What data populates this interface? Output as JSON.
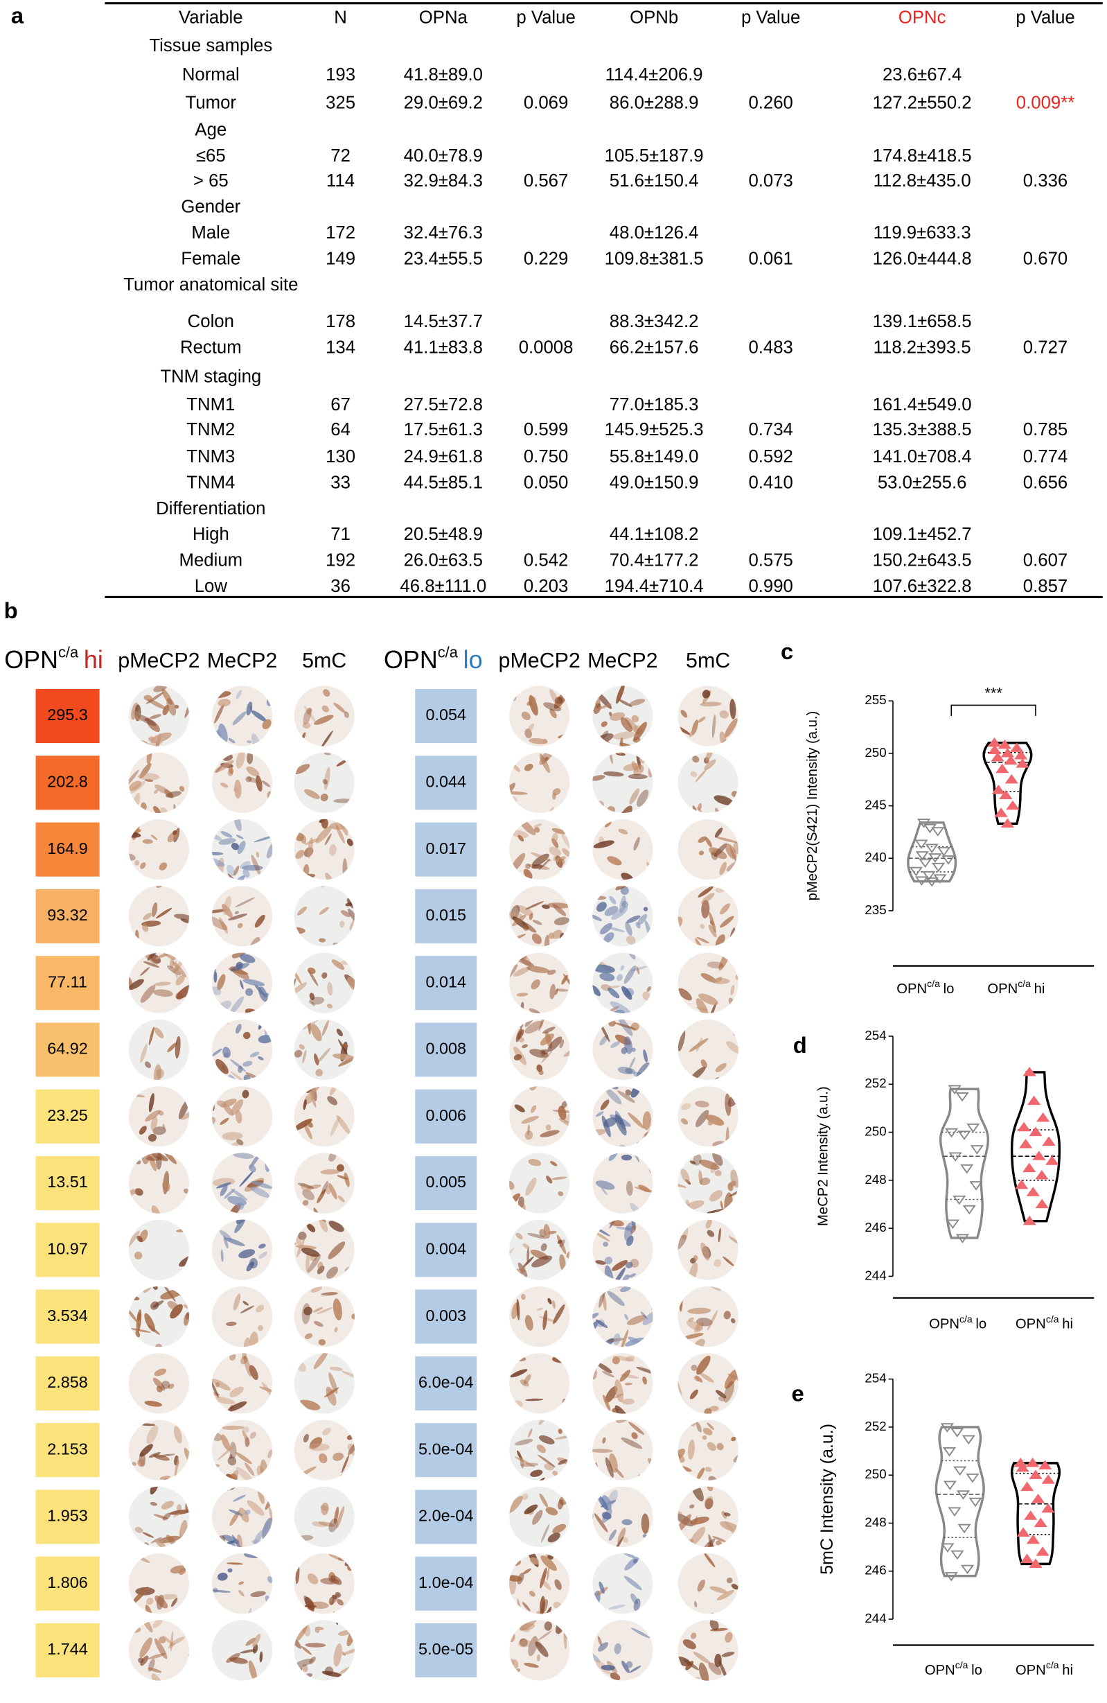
{
  "panel_labels": [
    "a",
    "b",
    "c",
    "d",
    "e"
  ],
  "table": {
    "columns": [
      "Variable",
      "N",
      "OPNa",
      "p Value",
      "OPNb",
      "p Value",
      "OPNc",
      "p Value"
    ],
    "rows": [
      {
        "group": "Tissue samples"
      },
      {
        "cells": [
          "Normal",
          "193",
          "41.8±89.0",
          null,
          "114.4±206.9",
          null,
          "23.6±67.4",
          null
        ]
      },
      {
        "cells": [
          "Tumor",
          "325",
          "29.0±69.2",
          "0.069",
          "86.0±288.9",
          "0.260",
          "127.2±550.2",
          "0.009**"
        ]
      },
      {
        "group": "Age"
      },
      {
        "cells": [
          "≤65",
          "72",
          "40.0±78.9",
          null,
          "105.5±187.9",
          null,
          "174.8±418.5",
          null
        ]
      },
      {
        "cells": [
          "> 65",
          "114",
          "32.9±84.3",
          "0.567",
          "51.6±150.4",
          "0.073",
          "112.8±435.0",
          "0.336"
        ]
      },
      {
        "group": "Gender"
      },
      {
        "cells": [
          "Male",
          "172",
          "32.4±76.3",
          null,
          "48.0±126.4",
          null,
          "119.9±633.3",
          null
        ]
      },
      {
        "cells": [
          "Female",
          "149",
          "23.4±55.5",
          "0.229",
          "109.8±381.5",
          "0.061",
          "126.0±444.8",
          "0.670"
        ]
      },
      {
        "group": "Tumor anatomical site"
      },
      {
        "cells": [
          "Colon",
          "178",
          "14.5±37.7",
          null,
          "88.3±342.2",
          null,
          "139.1±658.5",
          null
        ]
      },
      {
        "cells": [
          "Rectum",
          "134",
          "41.1±83.8",
          "0.0008",
          "66.2±157.6",
          "0.483",
          "118.2±393.5",
          "0.727"
        ]
      },
      {
        "group": "TNM staging"
      },
      {
        "cells": [
          "TNM1",
          "67",
          "27.5±72.8",
          null,
          "77.0±185.3",
          null,
          "161.4±549.0",
          null
        ]
      },
      {
        "cells": [
          "TNM2",
          "64",
          "17.5±61.3",
          "0.599",
          "145.9±525.3",
          "0.734",
          "135.3±388.5",
          "0.785"
        ]
      },
      {
        "cells": [
          "TNM3",
          "130",
          "24.9±61.8",
          "0.750",
          "55.8±149.0",
          "0.592",
          "141.0±708.4",
          "0.774"
        ]
      },
      {
        "cells": [
          "TNM4",
          "33",
          "44.5±85.1",
          "0.050",
          "49.0±150.9",
          "0.410",
          "53.0±255.6",
          "0.656"
        ]
      },
      {
        "group": "Differentiation"
      },
      {
        "cells": [
          "High",
          "71",
          "20.5±48.9",
          null,
          "44.1±108.2",
          null,
          "109.1±452.7",
          null
        ]
      },
      {
        "cells": [
          "Medium",
          "192",
          "26.0±63.5",
          "0.542",
          "70.4±177.2",
          "0.575",
          "150.2±643.5",
          "0.607"
        ]
      },
      {
        "cells": [
          "Low",
          "36",
          "46.8±111.0",
          "0.203",
          "194.4±710.4",
          "0.990",
          "107.6±322.8",
          "0.857"
        ]
      }
    ]
  },
  "panel_b": {
    "hi_header": {
      "base": "OPN",
      "sup": "c/a",
      "tag": "hi"
    },
    "lo_header": {
      "base": "OPN",
      "sup": "c/a",
      "tag": "lo"
    },
    "stains": [
      "pMeCP2",
      "MeCP2",
      "5mC"
    ],
    "hi_values": [
      "295.3",
      "202.8",
      "164.9",
      "93.32",
      "77.11",
      "64.92",
      "23.25",
      "13.51",
      "10.97",
      "3.534",
      "2.858",
      "2.153",
      "1.953",
      "1.806",
      "1.744"
    ],
    "hi_colors": [
      "#f04a1e",
      "#f46a2a",
      "#f6863a",
      "#f8b164",
      "#f8b868",
      "#f8bf6c",
      "#fbe27a",
      "#fbe27a",
      "#fbe27a",
      "#fbe27a",
      "#fbe27a",
      "#fbe27a",
      "#fbe27a",
      "#fbe27a",
      "#fbe27a"
    ],
    "lo_values": [
      "0.054",
      "0.044",
      "0.017",
      "0.015",
      "0.014",
      "0.008",
      "0.006",
      "0.005",
      "0.004",
      "0.003",
      "6.0e-04",
      "5.0e-04",
      "2.0e-04",
      "1.0e-04",
      "5.0e-05"
    ],
    "lo_color": "#b4cbe6"
  },
  "chart_data": [
    {
      "type": "violin",
      "y_label": "pMeCP2(S421) Intensity (a.u.)",
      "category_prefix": "OPN",
      "category_superscript": "c/a",
      "significance": "***",
      "ylim": [
        235,
        255
      ],
      "yticks": [
        235,
        240,
        245,
        250,
        255
      ],
      "series": [
        {
          "name": "lo",
          "color": "#888888",
          "values": [
            243.4,
            242.9,
            242.6,
            241.4,
            241.0,
            240.7,
            240.3,
            240.1,
            239.9,
            239.6,
            239.2,
            238.8,
            238.4,
            238.1,
            237.9,
            237.8
          ]
        },
        {
          "name": "hi",
          "color": "#000000",
          "marker_color": "#f0686e",
          "values": [
            251.0,
            250.8,
            250.5,
            250.3,
            250.0,
            249.8,
            249.6,
            249.3,
            249.0,
            248.5,
            247.5,
            246.5,
            246.0,
            245.0,
            244.3,
            243.3
          ]
        }
      ]
    },
    {
      "type": "violin",
      "y_label": "MeCP2 Intensity (a.u.)",
      "category_prefix": "OPN",
      "category_superscript": "c/a",
      "ylim": [
        244,
        254
      ],
      "yticks": [
        244,
        246,
        248,
        250,
        252,
        254
      ],
      "series": [
        {
          "name": "lo",
          "color": "#888888",
          "values": [
            251.8,
            251.5,
            250.2,
            250.0,
            249.9,
            249.3,
            249.0,
            248.5,
            247.8,
            247.2,
            246.8,
            246.2,
            245.6
          ]
        },
        {
          "name": "hi",
          "color": "#000000",
          "marker_color": "#f0686e",
          "values": [
            252.5,
            251.3,
            250.6,
            250.2,
            250.0,
            249.6,
            249.5,
            249.0,
            248.8,
            248.5,
            248.2,
            247.8,
            247.5,
            247.0,
            246.3
          ]
        }
      ]
    },
    {
      "type": "violin",
      "y_label": "5mC Intensity (a.u.)",
      "category_prefix": "OPN",
      "category_superscript": "c/a",
      "ylim": [
        244,
        254
      ],
      "yticks": [
        244,
        246,
        248,
        250,
        252,
        254
      ],
      "series": [
        {
          "name": "lo",
          "color": "#888888",
          "values": [
            252.0,
            251.8,
            251.5,
            251.0,
            250.2,
            249.9,
            249.6,
            249.2,
            248.9,
            248.5,
            247.8,
            247.0,
            246.7,
            246.1,
            245.8
          ]
        },
        {
          "name": "hi",
          "color": "#000000",
          "marker_color": "#f0686e",
          "values": [
            250.5,
            250.5,
            250.4,
            250.3,
            250.0,
            249.8,
            249.5,
            249.0,
            248.6,
            248.3,
            248.0,
            247.6,
            247.3,
            246.8,
            246.5,
            246.3
          ]
        }
      ]
    }
  ]
}
